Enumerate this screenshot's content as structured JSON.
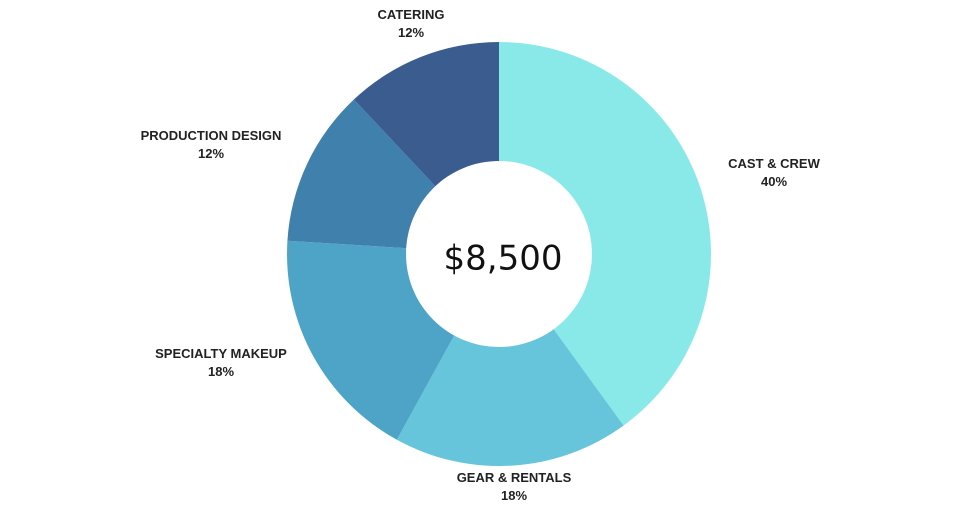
{
  "chart_data": {
    "type": "pie",
    "variant": "donut",
    "center_label": "$8,500",
    "start_angle_deg": 0,
    "direction": "clockwise",
    "slices": [
      {
        "name": "CAST & CREW",
        "value": 40,
        "label": "40%",
        "color": "#88E9E8"
      },
      {
        "name": "GEAR & RENTALS",
        "value": 18,
        "label": "18%",
        "color": "#66C5DA"
      },
      {
        "name": "SPECIALTY MAKEUP",
        "value": 18,
        "label": "18%",
        "color": "#4EA4C7"
      },
      {
        "name": "PRODUCTION DESIGN",
        "value": 12,
        "label": "12%",
        "color": "#3F80AD"
      },
      {
        "name": "CATERING",
        "value": 12,
        "label": "12%",
        "color": "#3A5C8F"
      }
    ]
  }
}
